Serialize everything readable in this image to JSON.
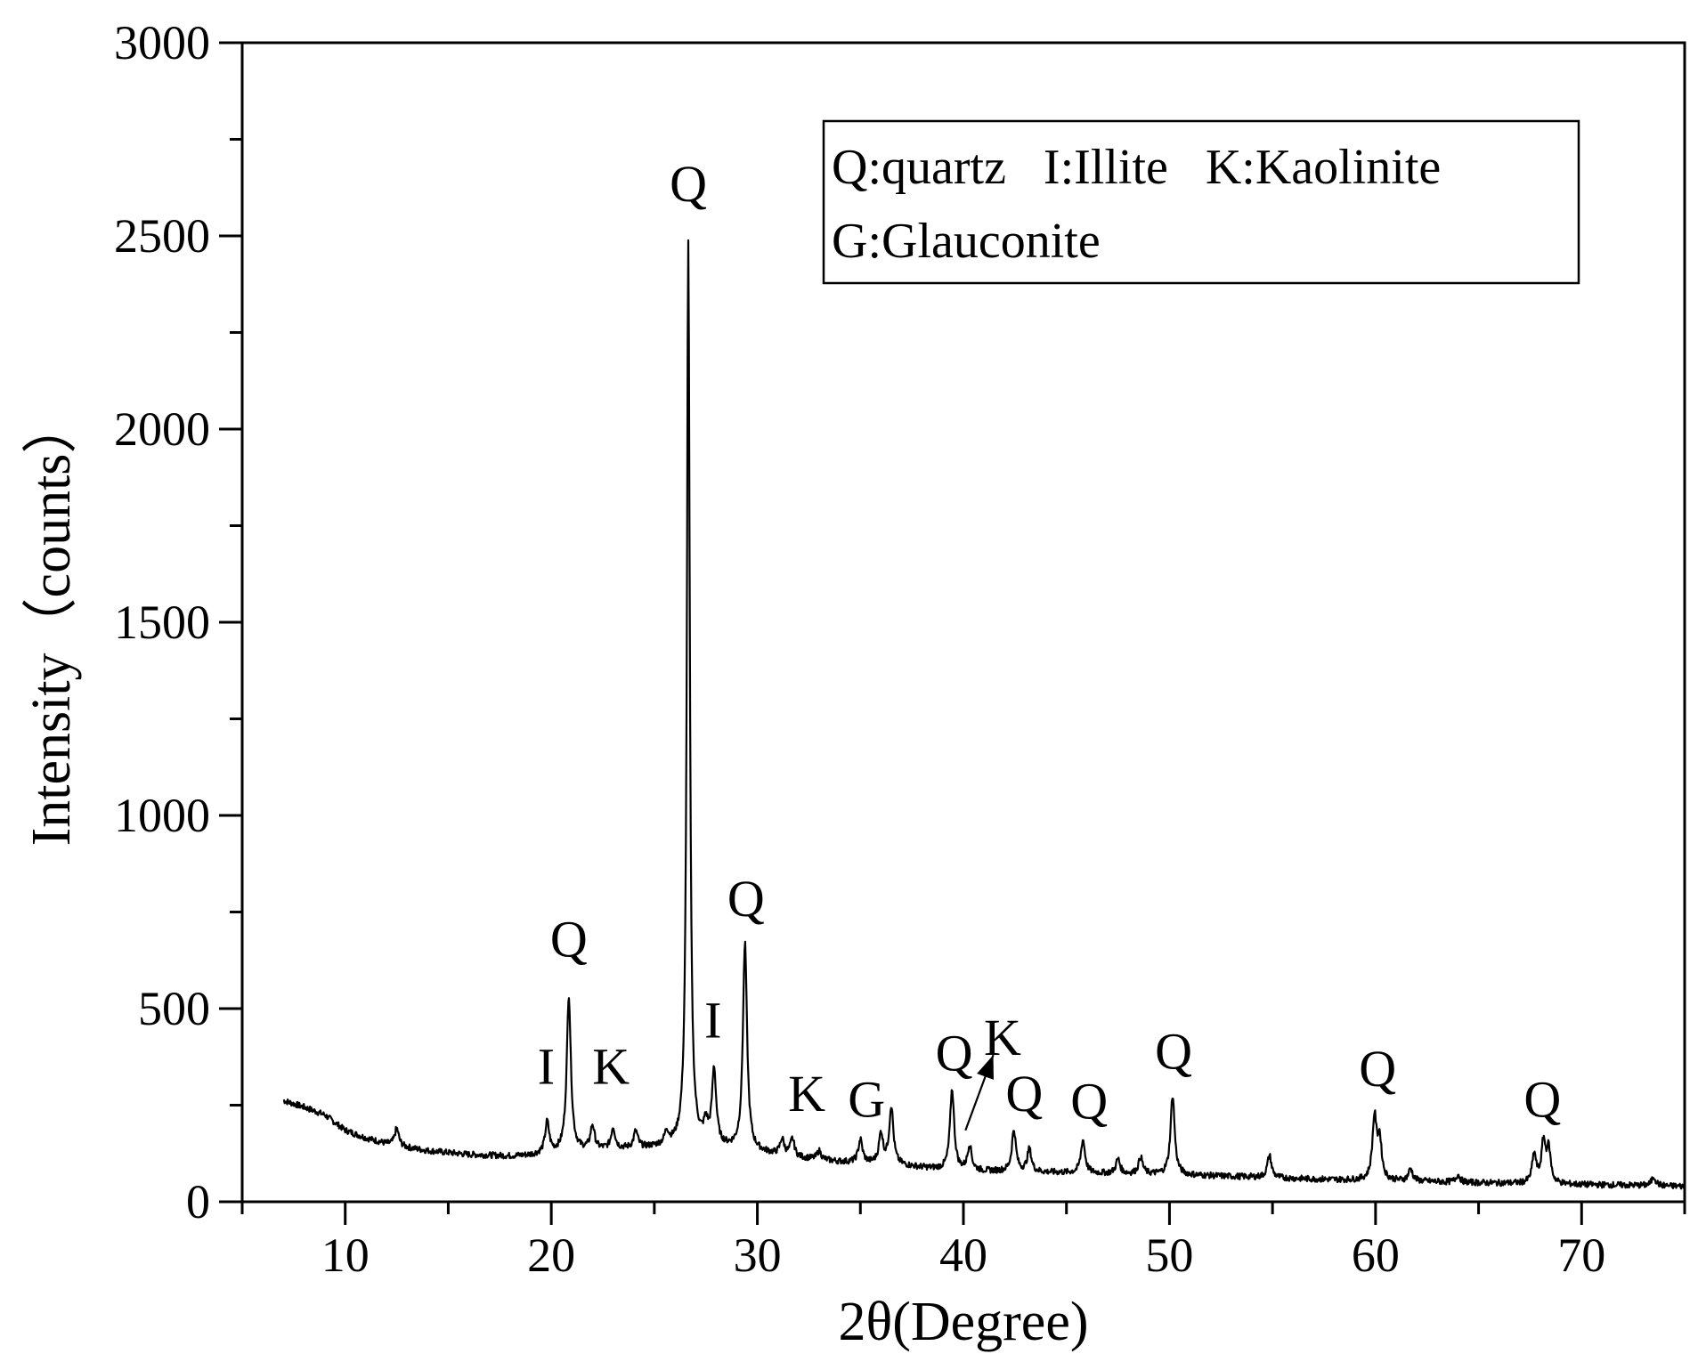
{
  "chart_data": {
    "type": "line",
    "xlabel": "2θ(Degree)",
    "ylabel": "Intensity（counts）",
    "xlim": [
      5,
      75
    ],
    "ylim": [
      0,
      3000
    ],
    "x_ticks": [
      10,
      20,
      30,
      40,
      50,
      60,
      70
    ],
    "y_ticks": [
      0,
      500,
      1000,
      1500,
      2000,
      2500,
      3000
    ],
    "grid": false,
    "legend": {
      "placement": "top-right",
      "lines": [
        "Q:quartz   I:Illite   K:Kaolinite",
        "G:Glauconite"
      ]
    },
    "series": [
      {
        "baseline": [
          [
            7.0,
            262
          ],
          [
            8.0,
            245
          ],
          [
            9.0,
            225
          ],
          [
            10.0,
            185
          ],
          [
            11.0,
            165
          ],
          [
            12.0,
            150
          ],
          [
            13.0,
            140
          ],
          [
            14.0,
            132
          ],
          [
            15.0,
            127
          ],
          [
            16.0,
            122
          ],
          [
            17.0,
            120
          ],
          [
            18.0,
            118
          ],
          [
            19.0,
            120
          ],
          [
            20.0,
            125
          ],
          [
            21.0,
            130
          ],
          [
            22.0,
            133
          ],
          [
            23.0,
            135
          ],
          [
            24.0,
            137
          ],
          [
            25.0,
            140
          ],
          [
            26.0,
            143
          ],
          [
            27.0,
            145
          ],
          [
            28.0,
            140
          ],
          [
            29.0,
            135
          ],
          [
            30.0,
            128
          ],
          [
            31.0,
            120
          ],
          [
            32.0,
            113
          ],
          [
            33.0,
            108
          ],
          [
            34.0,
            103
          ],
          [
            35.0,
            100
          ],
          [
            36.0,
            97
          ],
          [
            37.0,
            93
          ],
          [
            38.0,
            88
          ],
          [
            39.0,
            83
          ],
          [
            40.0,
            80
          ],
          [
            42.0,
            78
          ],
          [
            44.0,
            76
          ],
          [
            46.0,
            74
          ],
          [
            48.0,
            72
          ],
          [
            50.0,
            70
          ],
          [
            52.0,
            67
          ],
          [
            54.0,
            64
          ],
          [
            56.0,
            60
          ],
          [
            58.0,
            57
          ],
          [
            60.0,
            55
          ],
          [
            62.0,
            53
          ],
          [
            64.0,
            50
          ],
          [
            66.0,
            48
          ],
          [
            68.0,
            46
          ],
          [
            70.0,
            44
          ],
          [
            72.0,
            43
          ],
          [
            75.0,
            40
          ]
        ],
        "peaks": [
          [
            12.5,
            190
          ],
          [
            19.8,
            205
          ],
          [
            20.85,
            535
          ],
          [
            22.0,
            195
          ],
          [
            23.0,
            190
          ],
          [
            24.1,
            180
          ],
          [
            25.6,
            175
          ],
          [
            26.65,
            2480
          ],
          [
            27.5,
            190
          ],
          [
            27.9,
            335
          ],
          [
            29.4,
            665
          ],
          [
            31.2,
            160
          ],
          [
            31.7,
            160
          ],
          [
            33.0,
            130
          ],
          [
            35.0,
            160
          ],
          [
            36.0,
            175
          ],
          [
            36.5,
            245
          ],
          [
            39.45,
            290
          ],
          [
            40.3,
            145
          ],
          [
            42.45,
            185
          ],
          [
            43.2,
            135
          ],
          [
            45.8,
            160
          ],
          [
            47.5,
            110
          ],
          [
            48.6,
            115
          ],
          [
            50.15,
            275
          ],
          [
            54.85,
            120
          ],
          [
            59.95,
            215
          ],
          [
            60.2,
            155
          ],
          [
            61.7,
            85
          ],
          [
            64.0,
            70
          ],
          [
            67.7,
            120
          ],
          [
            68.15,
            150
          ],
          [
            68.4,
            130
          ],
          [
            73.5,
            65
          ]
        ]
      }
    ],
    "annotations": [
      {
        "text": "Q",
        "x": 26.65,
        "y": 2590
      },
      {
        "text": "Q",
        "x": 20.85,
        "y": 635
      },
      {
        "text": "I",
        "x": 19.75,
        "y": 305
      },
      {
        "text": "K",
        "x": 22.9,
        "y": 305
      },
      {
        "text": "I",
        "x": 27.85,
        "y": 425
      },
      {
        "text": "Q",
        "x": 29.45,
        "y": 740
      },
      {
        "text": "K",
        "x": 32.4,
        "y": 235
      },
      {
        "text": "G",
        "x": 35.3,
        "y": 220
      },
      {
        "text": "Q",
        "x": 39.55,
        "y": 340
      },
      {
        "text": "K",
        "x": 41.9,
        "y": 380
      },
      {
        "text": "Q",
        "x": 42.95,
        "y": 235
      },
      {
        "text": "Q",
        "x": 46.1,
        "y": 215
      },
      {
        "text": "Q",
        "x": 50.2,
        "y": 345
      },
      {
        "text": "Q",
        "x": 60.1,
        "y": 300
      },
      {
        "text": "Q",
        "x": 68.1,
        "y": 220
      }
    ],
    "arrows": [
      {
        "from": [
          40.1,
          185
        ],
        "to": [
          41.45,
          380
        ]
      }
    ]
  }
}
